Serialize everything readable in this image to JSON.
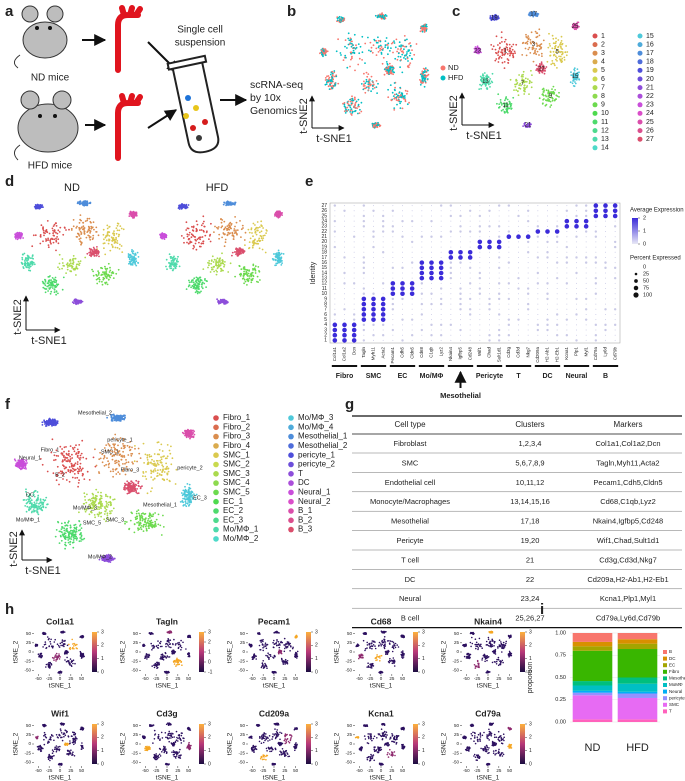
{
  "panel_letters": [
    "a",
    "b",
    "c",
    "d",
    "e",
    "f",
    "g",
    "h",
    "i"
  ],
  "a": {
    "nd_mice": "ND mice",
    "hfd_mice": "HFD mice",
    "suspension": [
      "Single cell",
      "suspension"
    ],
    "sequencing": [
      "scRNA-seq",
      "by 10x",
      "Genomics"
    ]
  },
  "b": {
    "legend": [
      {
        "name": "ND",
        "color": "#f8766d"
      },
      {
        "name": "HFD",
        "color": "#00bfc4"
      }
    ],
    "xlabel": "t-SNE1",
    "ylabel": "t-SNE2"
  },
  "c": {
    "legend": [
      "1",
      "2",
      "3",
      "4",
      "5",
      "6",
      "7",
      "8",
      "9",
      "10",
      "11",
      "12",
      "13",
      "14",
      "15",
      "16",
      "17",
      "18",
      "19",
      "20",
      "21",
      "22",
      "23",
      "24",
      "25",
      "26",
      "27"
    ],
    "xlabel": "t-SNE1",
    "ylabel": "t-SNE2"
  },
  "d": {
    "titles": [
      "ND",
      "HFD"
    ],
    "xlabel": "t-SNE1",
    "ylabel": "t-SNE2"
  },
  "e": {
    "ylabel": "Identity",
    "identities": [
      "1",
      "2",
      "3",
      "4",
      "5",
      "6",
      "7",
      "8",
      "9",
      "10",
      "11",
      "12",
      "13",
      "14",
      "15",
      "16",
      "17",
      "18",
      "19",
      "20",
      "21",
      "22",
      "23",
      "24",
      "25",
      "26",
      "27"
    ],
    "genes": [
      "Col1a1",
      "Col1a2",
      "Dcn",
      "Tagln",
      "Myh11",
      "Acta2",
      "Pecam1",
      "Cdh5",
      "Cldn5",
      "Cd68",
      "C1qb",
      "Lyz2",
      "Nkain4",
      "Igfbp5",
      "Cd248",
      "Wif1",
      "Chad",
      "Sult1d1",
      "Cd3g",
      "Cd3d",
      "Nkg7",
      "Cd209a",
      "H2-Ab1",
      "H2-Eb1",
      "Kcna1",
      "Plp1",
      "Myl1",
      "Cd79a",
      "Ly6d",
      "Cd79b"
    ],
    "groups": [
      "Fibro",
      "SMC",
      "EC",
      "Mo/MΦ",
      "Mesothelial",
      "Pericyte",
      "T",
      "DC",
      "Neural",
      "B"
    ],
    "color_title": "Average Expression",
    "color_ticks": [
      0,
      1,
      2
    ],
    "size_title": "Percent Expressed",
    "size_ticks": [
      0,
      25,
      50,
      75,
      100
    ]
  },
  "f": {
    "legend": [
      "Fibro_1",
      "Fibro_2",
      "Fibro_3",
      "Fibro_4",
      "SMC_1",
      "SMC_2",
      "SMC_3",
      "SMC_4",
      "SMC_5",
      "EC_1",
      "EC_2",
      "EC_3",
      "Mo/MΦ_1",
      "Mo/MΦ_2",
      "Mo/MΦ_3",
      "Mo/MΦ_4",
      "Mesothelial_1",
      "Mesothelial_2",
      "pericyte_1",
      "pericyte_2",
      "T",
      "DC",
      "Neural_1",
      "Neural_2",
      "B_1",
      "B_2",
      "B_3"
    ],
    "xlabel": "t-SNE1",
    "ylabel": "t-SNE2"
  },
  "g": {
    "header": [
      "Cell type",
      "Clusters",
      "Markers"
    ],
    "rows": [
      [
        "Fibroblast",
        "1,2,3,4",
        "Col1a1,Col1a2,Dcn"
      ],
      [
        "SMC",
        "5,6,7,8,9",
        "Tagln,Myh11,Acta2"
      ],
      [
        "Endothelial cell",
        "10,11,12",
        "Pecam1,Cdh5,Cldn5"
      ],
      [
        "Monocyte/Macrophages",
        "13,14,15,16",
        "Cd68,C1qb,Lyz2"
      ],
      [
        "Mesothelial",
        "17,18",
        "Nkain4,Igfbp5,Cd248"
      ],
      [
        "Pericyte",
        "19,20",
        "Wif1,Chad,Sult1d1"
      ],
      [
        "T cell",
        "21",
        "Cd3g,Cd3d,Nkg7"
      ],
      [
        "DC",
        "22",
        "Cd209a,H2-Ab1,H2-Eb1"
      ],
      [
        "Neural",
        "23,24",
        "Kcna1,Plp1,Myl1"
      ],
      [
        "B cell",
        "25,26,27",
        "Cd79a,Ly6d,Cd79b"
      ]
    ]
  },
  "h": {
    "xlabel": "tSNE_1",
    "ylabel": "tSNE_2",
    "xlim": [
      -60,
      60
    ],
    "ylim": [
      -60,
      60
    ],
    "xticks": [
      -50,
      -25,
      0,
      25,
      50
    ],
    "yticks": [
      -50,
      -25,
      0,
      25,
      50
    ],
    "plots": [
      {
        "title": "Col1a1",
        "colorbar_ticks": [
          0,
          1,
          2,
          3
        ]
      },
      {
        "title": "Tagln",
        "colorbar_ticks": [
          -1,
          0,
          1,
          2,
          3
        ]
      },
      {
        "title": "Pecam1",
        "colorbar_ticks": [
          0,
          1,
          2,
          3
        ]
      },
      {
        "title": "Cd68",
        "colorbar_ticks": [
          0,
          1,
          2,
          3
        ]
      },
      {
        "title": "Nkain4",
        "colorbar_ticks": [
          0,
          1,
          2,
          3
        ]
      },
      {
        "title": "Wif1",
        "colorbar_ticks": [
          0,
          1,
          2,
          3
        ]
      },
      {
        "title": "Cd3g",
        "colorbar_ticks": [
          0,
          1,
          2,
          3
        ]
      },
      {
        "title": "Cd209a",
        "colorbar_ticks": [
          0,
          1,
          2,
          3
        ]
      },
      {
        "title": "Kcna1",
        "colorbar_ticks": [
          0,
          1,
          2,
          3
        ]
      },
      {
        "title": "Cd79a",
        "colorbar_ticks": [
          0,
          1,
          2,
          3
        ]
      }
    ]
  },
  "chart_data": {
    "type": "stacked_bar",
    "ylabel": "proportion",
    "categories": [
      "ND",
      "HFD"
    ],
    "ylim": [
      0,
      1
    ],
    "yticks": [
      {
        "value": 0,
        "label": "0.00"
      },
      {
        "value": 0.25,
        "label": "0.25"
      },
      {
        "value": 0.5,
        "label": "0.50"
      },
      {
        "value": 0.75,
        "label": "0.75"
      },
      {
        "value": 1,
        "label": "1.00"
      }
    ],
    "grid": true,
    "series": [
      {
        "name": "B",
        "color": "#f8766d",
        "values": [
          0.1,
          0.07
        ]
      },
      {
        "name": "DC",
        "color": "#d89000",
        "values": [
          0.05,
          0.05
        ]
      },
      {
        "name": "EC",
        "color": "#a3a500",
        "values": [
          0.05,
          0.06
        ]
      },
      {
        "name": "Fibro",
        "color": "#39b600",
        "values": [
          0.34,
          0.32
        ]
      },
      {
        "name": "Mesothelial",
        "color": "#00bf7d",
        "values": [
          0.05,
          0.07
        ]
      },
      {
        "name": "MoMΦ",
        "color": "#00bfc4",
        "values": [
          0.06,
          0.09
        ]
      },
      {
        "name": "Neural",
        "color": "#00b0f6",
        "values": [
          0.02,
          0.02
        ]
      },
      {
        "name": "pericyte",
        "color": "#9590ff",
        "values": [
          0.03,
          0.05
        ]
      },
      {
        "name": "SMC",
        "color": "#e76bf3",
        "values": [
          0.27,
          0.24
        ]
      },
      {
        "name": "T",
        "color": "#ff62bc",
        "values": [
          0.03,
          0.03
        ]
      }
    ]
  }
}
